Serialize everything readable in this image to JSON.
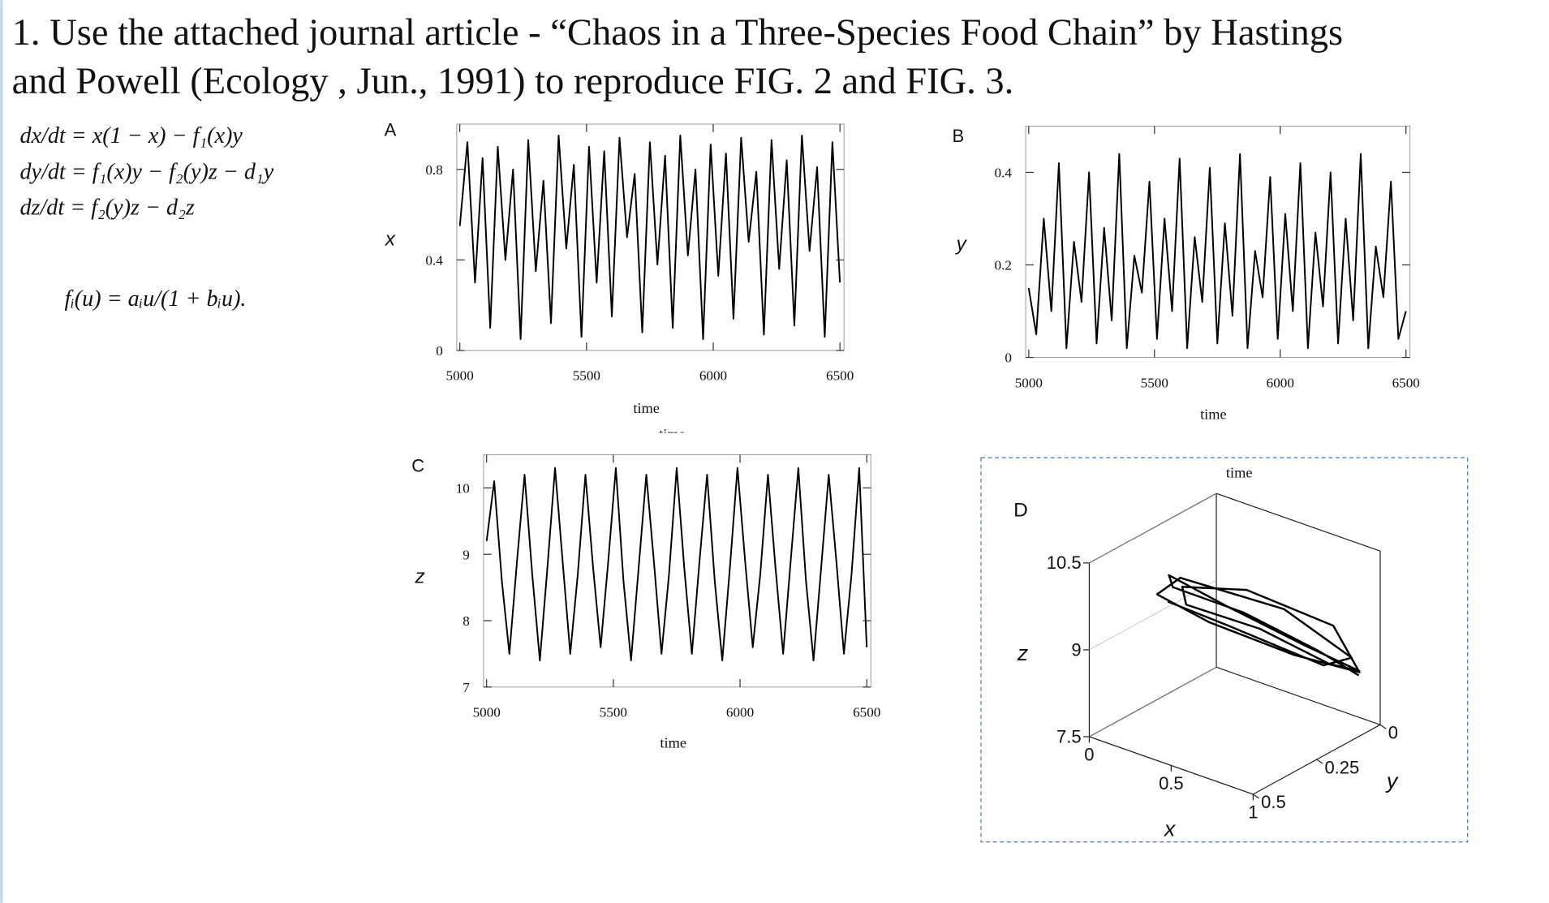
{
  "document": {
    "title_lines": [
      "1. Use the attached journal article - “Chaos in a Three-Species Food Chain” by Hastings",
      "and Powell (Ecology , Jun., 1991) to reproduce FIG. 2 and FIG. 3."
    ],
    "equations": [
      "dx/dt = x(1 − x) − f₁(x)y",
      "dy/dt = f₁(x)y − f₂(y)z − d₁y",
      "dz/dt = f₂(y)z − d₂z"
    ],
    "function_def": "fᵢ(u) = aᵢu/(1 + bᵢu).",
    "stray_label": "time"
  },
  "chart_data": [
    {
      "type": "line",
      "panel": "A",
      "ylabel": "x",
      "xlabel": "time",
      "x": [
        5000,
        5030,
        5060,
        5090,
        5120,
        5150,
        5180,
        5210,
        5240,
        5270,
        5300,
        5330,
        5360,
        5390,
        5420,
        5450,
        5480,
        5510,
        5540,
        5570,
        5600,
        5630,
        5660,
        5690,
        5720,
        5750,
        5780,
        5810,
        5840,
        5870,
        5900,
        5930,
        5960,
        5990,
        6020,
        6050,
        6080,
        6110,
        6140,
        6170,
        6200,
        6230,
        6260,
        6290,
        6320,
        6350,
        6380,
        6410,
        6440,
        6470,
        6500
      ],
      "series": [
        {
          "color": "#000000",
          "values": [
            0.55,
            0.92,
            0.3,
            0.85,
            0.1,
            0.9,
            0.4,
            0.8,
            0.05,
            0.93,
            0.35,
            0.75,
            0.12,
            0.95,
            0.45,
            0.82,
            0.06,
            0.9,
            0.3,
            0.88,
            0.15,
            0.94,
            0.5,
            0.78,
            0.08,
            0.92,
            0.38,
            0.86,
            0.1,
            0.95,
            0.42,
            0.8,
            0.05,
            0.91,
            0.33,
            0.87,
            0.14,
            0.94,
            0.48,
            0.79,
            0.07,
            0.93,
            0.36,
            0.84,
            0.11,
            0.95,
            0.44,
            0.81,
            0.06,
            0.92,
            0.3
          ]
        }
      ],
      "xlim": [
        4988,
        6516
      ],
      "ylim": [
        0,
        1
      ],
      "xticks": [
        5000,
        5500,
        6000,
        6500
      ],
      "yticks": [
        0,
        0.4,
        0.8
      ]
    },
    {
      "type": "line",
      "panel": "B",
      "ylabel": "y",
      "xlabel": "time",
      "x": [
        5000,
        5030,
        5060,
        5090,
        5120,
        5150,
        5180,
        5210,
        5240,
        5270,
        5300,
        5330,
        5360,
        5390,
        5420,
        5450,
        5480,
        5510,
        5540,
        5570,
        5600,
        5630,
        5660,
        5690,
        5720,
        5750,
        5780,
        5810,
        5840,
        5870,
        5900,
        5930,
        5960,
        5990,
        6020,
        6050,
        6080,
        6110,
        6140,
        6170,
        6200,
        6230,
        6260,
        6290,
        6320,
        6350,
        6380,
        6410,
        6440,
        6470,
        6500
      ],
      "series": [
        {
          "color": "#000000",
          "values": [
            0.15,
            0.05,
            0.3,
            0.1,
            0.42,
            0.02,
            0.25,
            0.12,
            0.4,
            0.03,
            0.28,
            0.08,
            0.44,
            0.02,
            0.22,
            0.14,
            0.38,
            0.04,
            0.3,
            0.1,
            0.43,
            0.02,
            0.26,
            0.12,
            0.41,
            0.03,
            0.29,
            0.09,
            0.44,
            0.02,
            0.23,
            0.13,
            0.39,
            0.04,
            0.31,
            0.1,
            0.42,
            0.02,
            0.27,
            0.11,
            0.4,
            0.03,
            0.3,
            0.08,
            0.44,
            0.02,
            0.24,
            0.13,
            0.38,
            0.04,
            0.1
          ]
        }
      ],
      "xlim": [
        4988,
        6516
      ],
      "ylim": [
        0,
        0.5
      ],
      "xticks": [
        5000,
        5500,
        6000,
        6500
      ],
      "yticks": [
        0,
        0.2,
        0.4
      ]
    },
    {
      "type": "line",
      "panel": "C",
      "ylabel": "z",
      "xlabel": "time",
      "x": [
        5000,
        5030,
        5060,
        5090,
        5120,
        5150,
        5180,
        5210,
        5240,
        5270,
        5300,
        5330,
        5360,
        5390,
        5420,
        5450,
        5480,
        5510,
        5540,
        5570,
        5600,
        5630,
        5660,
        5690,
        5720,
        5750,
        5780,
        5810,
        5840,
        5870,
        5900,
        5930,
        5960,
        5990,
        6020,
        6050,
        6080,
        6110,
        6140,
        6170,
        6200,
        6230,
        6260,
        6290,
        6320,
        6350,
        6380,
        6410,
        6440,
        6470,
        6500
      ],
      "series": [
        {
          "color": "#000000",
          "values": [
            9.2,
            10.1,
            8.6,
            7.5,
            8.9,
            10.2,
            8.7,
            7.4,
            8.8,
            10.3,
            8.9,
            7.5,
            8.7,
            10.2,
            8.8,
            7.6,
            8.9,
            10.3,
            8.6,
            7.4,
            8.8,
            10.2,
            8.9,
            7.5,
            8.7,
            10.3,
            8.8,
            7.5,
            8.9,
            10.2,
            8.6,
            7.4,
            8.8,
            10.3,
            8.9,
            7.6,
            8.7,
            10.2,
            8.8,
            7.5,
            8.9,
            10.3,
            8.6,
            7.4,
            8.8,
            10.2,
            8.9,
            7.5,
            8.7,
            10.3,
            7.6
          ]
        }
      ],
      "xlim": [
        4988,
        6516
      ],
      "ylim": [
        7,
        10.5
      ],
      "xticks": [
        5000,
        5500,
        6000,
        6500
      ],
      "yticks": [
        7,
        8,
        9,
        10
      ]
    },
    {
      "type": "line3d",
      "panel": "D",
      "top_label": "time",
      "xlabel": "x",
      "ylabel": "y",
      "zlabel": "z",
      "color": "#000000",
      "x": [
        0.9,
        0.7,
        0.4,
        0.2,
        0.3,
        0.6,
        0.85,
        0.95,
        0.75,
        0.45,
        0.25,
        0.35,
        0.65,
        0.9,
        0.92,
        0.6,
        0.3,
        0.15,
        0.4,
        0.8,
        0.95,
        0.7,
        0.35,
        0.2
      ],
      "y": [
        0.02,
        0.05,
        0.15,
        0.3,
        0.38,
        0.35,
        0.2,
        0.05,
        0.04,
        0.12,
        0.28,
        0.36,
        0.3,
        0.12,
        0.03,
        0.08,
        0.22,
        0.33,
        0.4,
        0.25,
        0.08,
        0.03,
        0.18,
        0.32
      ],
      "z": [
        8.3,
        8.6,
        9.2,
        9.8,
        10.3,
        10.0,
        9.2,
        8.5,
        8.4,
        8.9,
        9.5,
        10.1,
        10.2,
        9.4,
        8.4,
        8.5,
        9.1,
        9.7,
        10.4,
        9.9,
        8.8,
        8.3,
        9.0,
        9.6
      ],
      "xlim": [
        0,
        1
      ],
      "ylim": [
        0,
        0.5
      ],
      "zlim": [
        7.5,
        10.5
      ],
      "xticks": [
        0,
        0.5,
        1
      ],
      "yticks": [
        0,
        0.25,
        0.5
      ],
      "zticks": [
        7.5,
        9,
        10.5
      ]
    }
  ]
}
